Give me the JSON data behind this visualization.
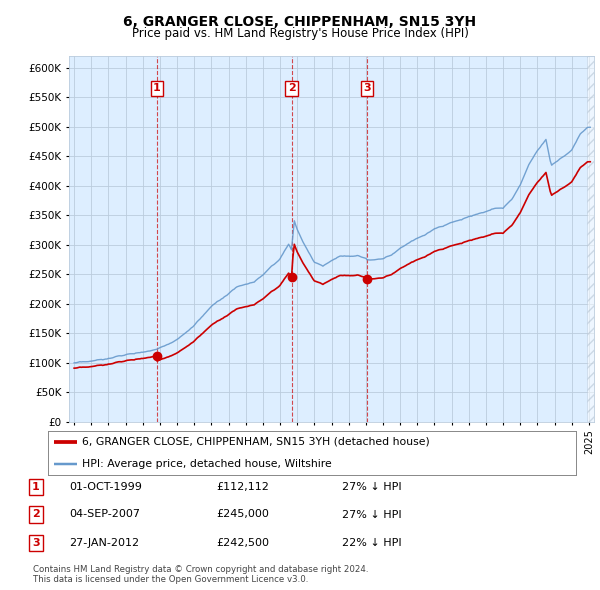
{
  "title": "6, GRANGER CLOSE, CHIPPENHAM, SN15 3YH",
  "subtitle": "Price paid vs. HM Land Registry's House Price Index (HPI)",
  "ylim": [
    0,
    620000
  ],
  "yticks": [
    0,
    50000,
    100000,
    150000,
    200000,
    250000,
    300000,
    350000,
    400000,
    450000,
    500000,
    550000,
    600000
  ],
  "sales": [
    {
      "date": 1999.83,
      "price": 112112,
      "label": "1"
    },
    {
      "date": 2007.67,
      "price": 245000,
      "label": "2"
    },
    {
      "date": 2012.08,
      "price": 242500,
      "label": "3"
    }
  ],
  "legend_entries": [
    {
      "label": "6, GRANGER CLOSE, CHIPPENHAM, SN15 3YH (detached house)",
      "color": "#cc0000",
      "lw": 1.8
    },
    {
      "label": "HPI: Average price, detached house, Wiltshire",
      "color": "#6699cc",
      "lw": 1.2
    }
  ],
  "table_rows": [
    {
      "num": "1",
      "date": "01-OCT-1999",
      "price": "£112,112",
      "pct": "27% ↓ HPI"
    },
    {
      "num": "2",
      "date": "04-SEP-2007",
      "price": "£245,000",
      "pct": "27% ↓ HPI"
    },
    {
      "num": "3",
      "date": "27-JAN-2012",
      "price": "£242,500",
      "pct": "22% ↓ HPI"
    }
  ],
  "footnote": "Contains HM Land Registry data © Crown copyright and database right 2024.\nThis data is licensed under the Open Government Licence v3.0.",
  "red_color": "#cc0000",
  "blue_color": "#6699cc",
  "grid_color": "#bbccdd",
  "chart_bg": "#ddeeff",
  "bg_color": "#ffffff",
  "vline_color": "#cc0000"
}
